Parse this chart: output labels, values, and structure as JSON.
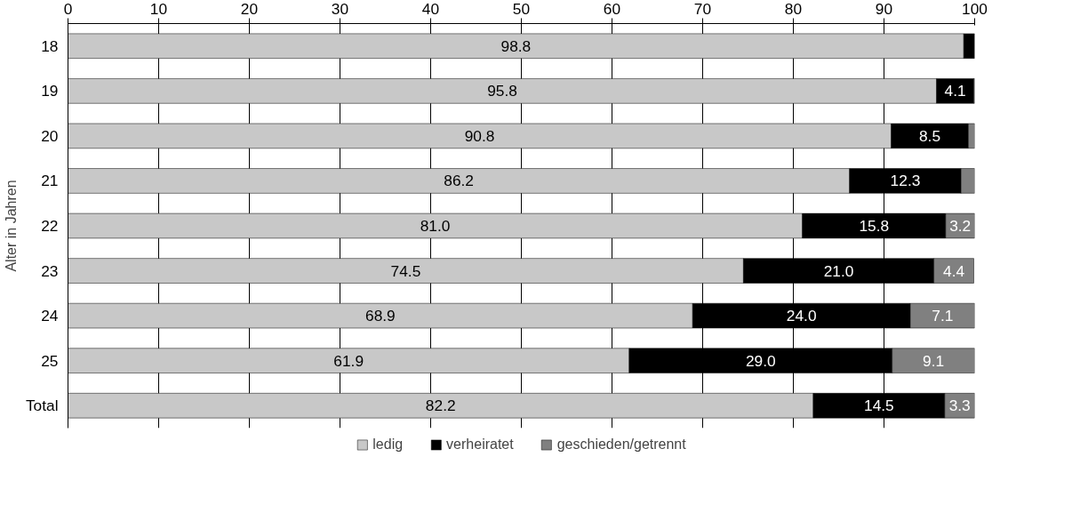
{
  "chart_data": {
    "type": "bar",
    "orientation": "horizontal",
    "stacked": true,
    "ylabel": "Alter in Jahren",
    "categories": [
      "18",
      "19",
      "20",
      "21",
      "22",
      "23",
      "24",
      "25",
      "Total"
    ],
    "series": [
      {
        "name": "ledig",
        "color": "#c8c8c8",
        "values": [
          98.8,
          95.8,
          90.8,
          86.2,
          81.0,
          74.5,
          68.9,
          61.9,
          82.2
        ],
        "value_labels": [
          "98.8",
          "95.8",
          "90.8",
          "86.2",
          "81.0",
          "74.5",
          "68.9",
          "61.9",
          "82.2"
        ]
      },
      {
        "name": "verheiratet",
        "color": "#000000",
        "values": [
          1.2,
          4.1,
          8.5,
          12.3,
          15.8,
          21.0,
          24.0,
          29.0,
          14.5
        ],
        "value_labels": [
          null,
          "4.1",
          "8.5",
          "12.3",
          "15.8",
          "21.0",
          "24.0",
          "29.0",
          "14.5"
        ]
      },
      {
        "name": "geschieden/getrennt",
        "color": "#808080",
        "values": [
          null,
          0.1,
          0.7,
          1.5,
          3.2,
          4.4,
          7.1,
          9.1,
          3.3
        ],
        "value_labels": [
          null,
          null,
          null,
          null,
          "3.2",
          "4.4",
          "7.1",
          "9.1",
          "3.3"
        ]
      }
    ],
    "xlim": [
      0,
      100
    ],
    "xticks": [
      0,
      10,
      20,
      30,
      40,
      50,
      60,
      70,
      80,
      90,
      100
    ],
    "grid": "x",
    "legend": "bottom"
  }
}
